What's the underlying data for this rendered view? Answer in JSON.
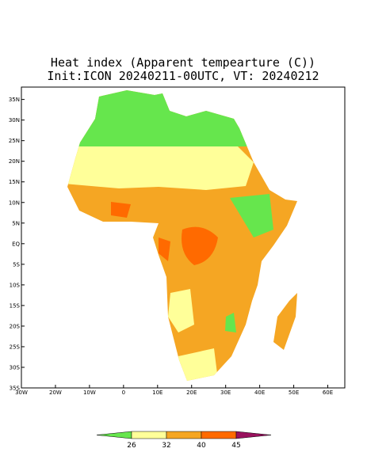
{
  "title": [
    "Heat index (Apparent tempearture (C))",
    "Init:ICON 20240211-00UTC, VT: 20240212"
  ],
  "map": {
    "lonlim": [
      -30,
      65
    ],
    "latlim": [
      -35,
      38
    ],
    "lon_ticks": [
      {
        "value": -30,
        "label": "30W"
      },
      {
        "value": -20,
        "label": "20W"
      },
      {
        "value": -10,
        "label": "10W"
      },
      0,
      {
        "value": 10,
        "label": "10E"
      },
      {
        "value": 20,
        "label": "20E"
      },
      {
        "value": 30,
        "label": "30E"
      },
      {
        "value": 40,
        "label": "40E"
      },
      {
        "value": 50,
        "label": "50E"
      },
      {
        "value": 60,
        "label": "60E"
      }
    ],
    "lat_ticks": [
      {
        "value": 35,
        "label": "35N"
      },
      {
        "value": 30,
        "label": "30N"
      },
      {
        "value": 25,
        "label": "25N"
      },
      {
        "value": 20,
        "label": "20N"
      },
      {
        "value": 15,
        "label": "15N"
      },
      {
        "value": 10,
        "label": "10N"
      },
      {
        "value": 5,
        "label": "5N"
      },
      {
        "value": 0,
        "label": "EQ"
      },
      {
        "value": -5,
        "label": "5S"
      },
      {
        "value": -10,
        "label": "10S"
      },
      {
        "value": -15,
        "label": "15S"
      },
      {
        "value": -20,
        "label": "20S"
      },
      {
        "value": -25,
        "label": "25S"
      },
      {
        "value": -30,
        "label": "30S"
      },
      {
        "value": -35,
        "label": "35S"
      }
    ]
  },
  "colorbar": {
    "levels": [
      26,
      32,
      40,
      45
    ],
    "colors": [
      "#66e64d",
      "#ffff99",
      "#f5a623",
      "#ff6a00",
      "#99115e"
    ]
  }
}
